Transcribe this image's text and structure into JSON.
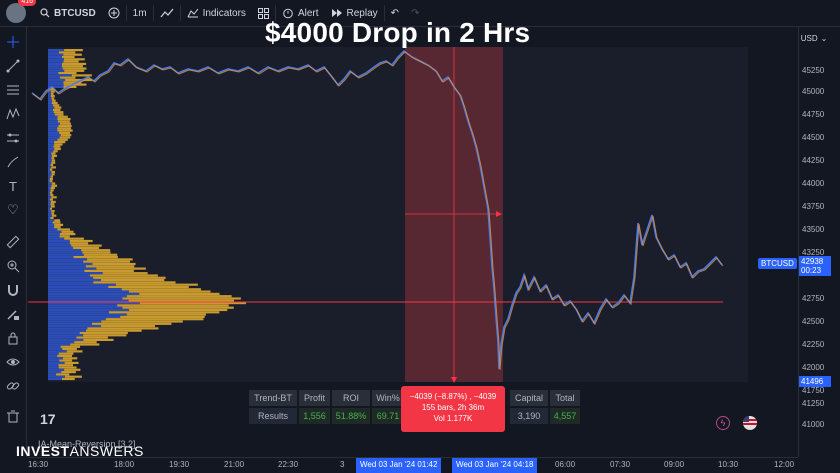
{
  "headline": "$4000 Drop in 2 Hrs",
  "toolbar": {
    "badge": "416",
    "symbol": "BTCUSD",
    "interval": "1m",
    "indicators": "Indicators",
    "alert": "Alert",
    "replay": "Replay"
  },
  "currency": "USD",
  "price_axis": [
    "45250",
    "45000",
    "44750",
    "44500",
    "44250",
    "44000",
    "43750",
    "43500",
    "43250",
    "42750",
    "42500",
    "42250",
    "42000",
    "41750",
    "41250",
    "41000"
  ],
  "symbol_tag": "BTCUSD",
  "current_price": "42938",
  "countdown": "00:23",
  "low_price": "41496",
  "results": {
    "headers": [
      "Trend-BT",
      "Profit",
      "ROI",
      "Win%"
    ],
    "values": [
      "Results",
      "1,556",
      "51.88%",
      "69.71"
    ],
    "headers2": [
      "Capital",
      "Total"
    ],
    "values2": [
      "3,190",
      "4,557"
    ]
  },
  "measure": {
    "line1": "−4039 (−8.87%) , −4039",
    "line2": "155 bars, 2h 36m",
    "line3": "Vol 1.177K"
  },
  "strategy_label": "IA-Mean-Reversion [3.2]",
  "brand": {
    "bold": "INVEST",
    "light": "ANSWERS"
  },
  "tv_logo": "17",
  "time_axis": [
    "16:30",
    "18:00",
    "19:30",
    "21:00",
    "22:30",
    "3",
    "06:00",
    "07:30",
    "09:00",
    "10:30",
    "12:00"
  ],
  "time_highlight_1": "Wed 03 Jan '24  01:42",
  "time_highlight_2": "Wed 03 Jan '24  04:18",
  "colors": {
    "accent": "#2962ff",
    "drop": "#f23645",
    "profile_blue": "#2b4eb8",
    "profile_gold": "#c99a2e",
    "line": "#4a7be8"
  }
}
